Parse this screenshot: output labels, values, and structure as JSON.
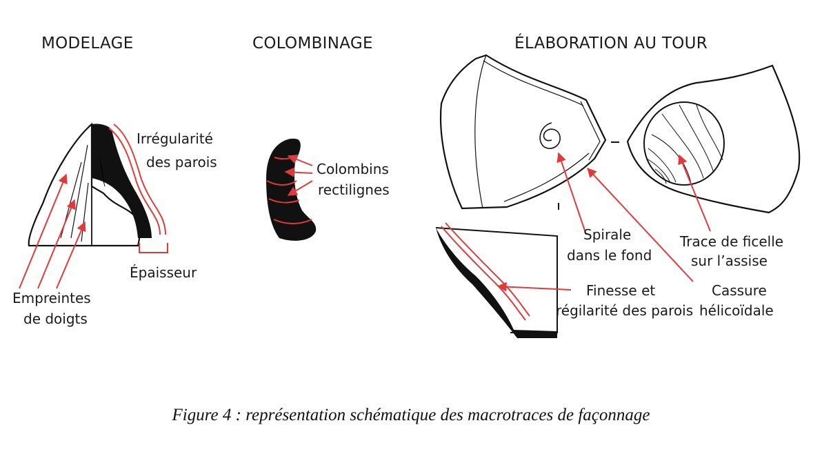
{
  "headings": {
    "modelage": "MODELAGE",
    "colombinage": "COLOMBINAGE",
    "tour": "ÉLABORATION AU TOUR"
  },
  "annotations": {
    "irregularite_1": "Irrégularité",
    "irregularite_2": "des parois",
    "epaisseur": "Épaisseur",
    "empreintes_1": "Empreintes",
    "empreintes_2": "de doigts",
    "colombins_1": "Colombins",
    "colombins_2": "rectilignes",
    "spirale_1": "Spirale",
    "spirale_2": "dans le fond",
    "trace_1": "Trace de ficelle",
    "trace_2": "sur l’assise",
    "finesse_1": "Finesse et",
    "finesse_2": "régilarité des parois",
    "cassure_1": "Cassure",
    "cassure_2": "hélicoïdale"
  },
  "caption": {
    "prefix": "Figure 4 : représentation schématique des ",
    "misspelled": "macrotraces",
    "suffix": " de façonnage"
  },
  "colors": {
    "ink": "#1a1a1a",
    "arrow": "#e03a3a",
    "spellcheck_underline": "#dd3333"
  }
}
